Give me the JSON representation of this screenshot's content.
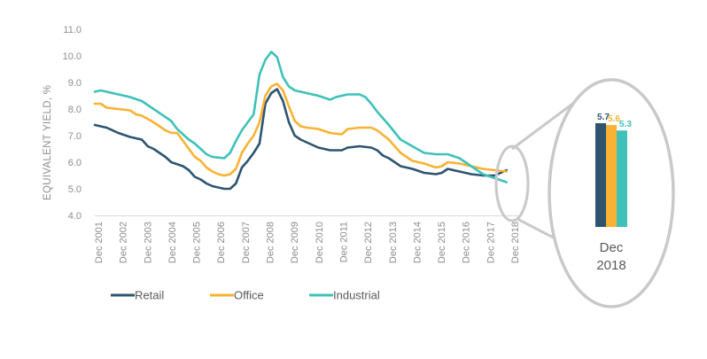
{
  "chart_data": {
    "type": "line",
    "ylabel": "EQUIVALENT YIELD, %",
    "ylim": [
      4.0,
      11.0
    ],
    "yticks": [
      "4.0",
      "5.0",
      "6.0",
      "7.0",
      "8.0",
      "9.0",
      "10.0",
      "11.0"
    ],
    "xrange": [
      2001.0,
      2019.0
    ],
    "xticks": [
      "Dec 2001",
      "Dec 2002",
      "Dec 2003",
      "Dec 2004",
      "Dec 2005",
      "Dec 2006",
      "Dec 2007",
      "Dec 2008",
      "Dec 2009",
      "Dec 2010",
      "Dec 2011",
      "Dec 2012",
      "Dec 2013",
      "Dec 2014",
      "Dec 2015",
      "Dec 2016",
      "Dec 2017",
      "Dec 2018"
    ],
    "grid": false,
    "legend_position": "bottom-left",
    "series": [
      {
        "name": "Retail",
        "color": "#2e5470",
        "points": [
          [
            2001.0,
            7.4
          ],
          [
            2001.5,
            7.3
          ],
          [
            2002.0,
            7.1
          ],
          [
            2002.5,
            6.95
          ],
          [
            2003.0,
            6.85
          ],
          [
            2003.25,
            6.6
          ],
          [
            2003.5,
            6.5
          ],
          [
            2004.0,
            6.2
          ],
          [
            2004.25,
            6.0
          ],
          [
            2004.75,
            5.85
          ],
          [
            2005.0,
            5.7
          ],
          [
            2005.25,
            5.45
          ],
          [
            2005.5,
            5.35
          ],
          [
            2005.75,
            5.2
          ],
          [
            2006.0,
            5.1
          ],
          [
            2006.25,
            5.05
          ],
          [
            2006.5,
            5.0
          ],
          [
            2006.75,
            5.0
          ],
          [
            2007.0,
            5.2
          ],
          [
            2007.25,
            5.8
          ],
          [
            2007.5,
            6.05
          ],
          [
            2007.75,
            6.35
          ],
          [
            2008.0,
            6.7
          ],
          [
            2008.25,
            8.2
          ],
          [
            2008.5,
            8.6
          ],
          [
            2008.75,
            8.75
          ],
          [
            2009.0,
            8.3
          ],
          [
            2009.25,
            7.5
          ],
          [
            2009.5,
            7.0
          ],
          [
            2009.75,
            6.85
          ],
          [
            2010.0,
            6.75
          ],
          [
            2010.5,
            6.55
          ],
          [
            2011.0,
            6.45
          ],
          [
            2011.5,
            6.45
          ],
          [
            2011.75,
            6.55
          ],
          [
            2012.25,
            6.6
          ],
          [
            2012.75,
            6.55
          ],
          [
            2013.0,
            6.45
          ],
          [
            2013.25,
            6.25
          ],
          [
            2013.5,
            6.15
          ],
          [
            2013.75,
            6.0
          ],
          [
            2014.0,
            5.85
          ],
          [
            2014.5,
            5.75
          ],
          [
            2015.0,
            5.6
          ],
          [
            2015.5,
            5.55
          ],
          [
            2015.75,
            5.6
          ],
          [
            2016.0,
            5.75
          ],
          [
            2016.5,
            5.65
          ],
          [
            2016.75,
            5.6
          ],
          [
            2017.0,
            5.55
          ],
          [
            2017.5,
            5.5
          ],
          [
            2018.0,
            5.5
          ],
          [
            2018.25,
            5.6
          ],
          [
            2018.5,
            5.7
          ]
        ]
      },
      {
        "name": "Office",
        "color": "#f9b233",
        "points": [
          [
            2001.0,
            8.2
          ],
          [
            2001.25,
            8.2
          ],
          [
            2001.5,
            8.05
          ],
          [
            2002.0,
            8.0
          ],
          [
            2002.5,
            7.95
          ],
          [
            2002.75,
            7.8
          ],
          [
            2003.0,
            7.75
          ],
          [
            2003.5,
            7.5
          ],
          [
            2004.0,
            7.2
          ],
          [
            2004.25,
            7.1
          ],
          [
            2004.5,
            7.1
          ],
          [
            2004.75,
            6.8
          ],
          [
            2005.0,
            6.5
          ],
          [
            2005.25,
            6.2
          ],
          [
            2005.5,
            6.05
          ],
          [
            2005.75,
            5.8
          ],
          [
            2006.0,
            5.65
          ],
          [
            2006.25,
            5.55
          ],
          [
            2006.5,
            5.5
          ],
          [
            2006.75,
            5.55
          ],
          [
            2007.0,
            5.75
          ],
          [
            2007.25,
            6.35
          ],
          [
            2007.5,
            6.7
          ],
          [
            2007.75,
            7.0
          ],
          [
            2008.0,
            7.5
          ],
          [
            2008.25,
            8.5
          ],
          [
            2008.5,
            8.85
          ],
          [
            2008.75,
            8.95
          ],
          [
            2009.0,
            8.7
          ],
          [
            2009.25,
            8.1
          ],
          [
            2009.5,
            7.55
          ],
          [
            2009.75,
            7.35
          ],
          [
            2010.0,
            7.3
          ],
          [
            2010.5,
            7.25
          ],
          [
            2011.0,
            7.1
          ],
          [
            2011.5,
            7.05
          ],
          [
            2011.75,
            7.25
          ],
          [
            2012.25,
            7.3
          ],
          [
            2012.75,
            7.3
          ],
          [
            2013.0,
            7.2
          ],
          [
            2013.5,
            6.85
          ],
          [
            2014.0,
            6.35
          ],
          [
            2014.5,
            6.05
          ],
          [
            2015.0,
            5.95
          ],
          [
            2015.5,
            5.8
          ],
          [
            2015.75,
            5.85
          ],
          [
            2016.0,
            6.0
          ],
          [
            2016.5,
            5.95
          ],
          [
            2017.0,
            5.85
          ],
          [
            2017.5,
            5.75
          ],
          [
            2018.0,
            5.7
          ],
          [
            2018.5,
            5.65
          ]
        ]
      },
      {
        "name": "Industrial",
        "color": "#3fc1b9",
        "points": [
          [
            2001.0,
            8.65
          ],
          [
            2001.25,
            8.7
          ],
          [
            2001.5,
            8.65
          ],
          [
            2002.0,
            8.55
          ],
          [
            2002.5,
            8.45
          ],
          [
            2003.0,
            8.3
          ],
          [
            2003.5,
            8.0
          ],
          [
            2004.0,
            7.7
          ],
          [
            2004.25,
            7.55
          ],
          [
            2004.5,
            7.25
          ],
          [
            2005.0,
            6.85
          ],
          [
            2005.25,
            6.7
          ],
          [
            2005.5,
            6.5
          ],
          [
            2005.75,
            6.3
          ],
          [
            2006.0,
            6.2
          ],
          [
            2006.5,
            6.15
          ],
          [
            2006.75,
            6.35
          ],
          [
            2007.0,
            6.8
          ],
          [
            2007.25,
            7.2
          ],
          [
            2007.5,
            7.5
          ],
          [
            2007.75,
            7.8
          ],
          [
            2008.0,
            9.3
          ],
          [
            2008.25,
            9.85
          ],
          [
            2008.5,
            10.15
          ],
          [
            2008.75,
            9.95
          ],
          [
            2009.0,
            9.2
          ],
          [
            2009.25,
            8.85
          ],
          [
            2009.5,
            8.7
          ],
          [
            2010.0,
            8.6
          ],
          [
            2010.5,
            8.5
          ],
          [
            2011.0,
            8.35
          ],
          [
            2011.25,
            8.45
          ],
          [
            2011.5,
            8.5
          ],
          [
            2011.75,
            8.55
          ],
          [
            2012.25,
            8.55
          ],
          [
            2012.5,
            8.45
          ],
          [
            2012.75,
            8.2
          ],
          [
            2013.0,
            7.9
          ],
          [
            2013.5,
            7.4
          ],
          [
            2014.0,
            6.85
          ],
          [
            2014.5,
            6.6
          ],
          [
            2015.0,
            6.35
          ],
          [
            2015.5,
            6.3
          ],
          [
            2016.0,
            6.3
          ],
          [
            2016.5,
            6.15
          ],
          [
            2017.0,
            5.85
          ],
          [
            2017.5,
            5.55
          ],
          [
            2018.0,
            5.4
          ],
          [
            2018.5,
            5.25
          ]
        ]
      }
    ]
  },
  "zoom_inset": {
    "label_line1": "Dec",
    "label_line2": "2018",
    "bars": [
      {
        "series": "Retail",
        "value": 5.7,
        "label": "5.7",
        "color": "#2e5470"
      },
      {
        "series": "Office",
        "value": 5.6,
        "label": "5.6",
        "color": "#f9b233"
      },
      {
        "series": "Industrial",
        "value": 5.3,
        "label": "5.3",
        "color": "#3fc1b9"
      }
    ]
  }
}
